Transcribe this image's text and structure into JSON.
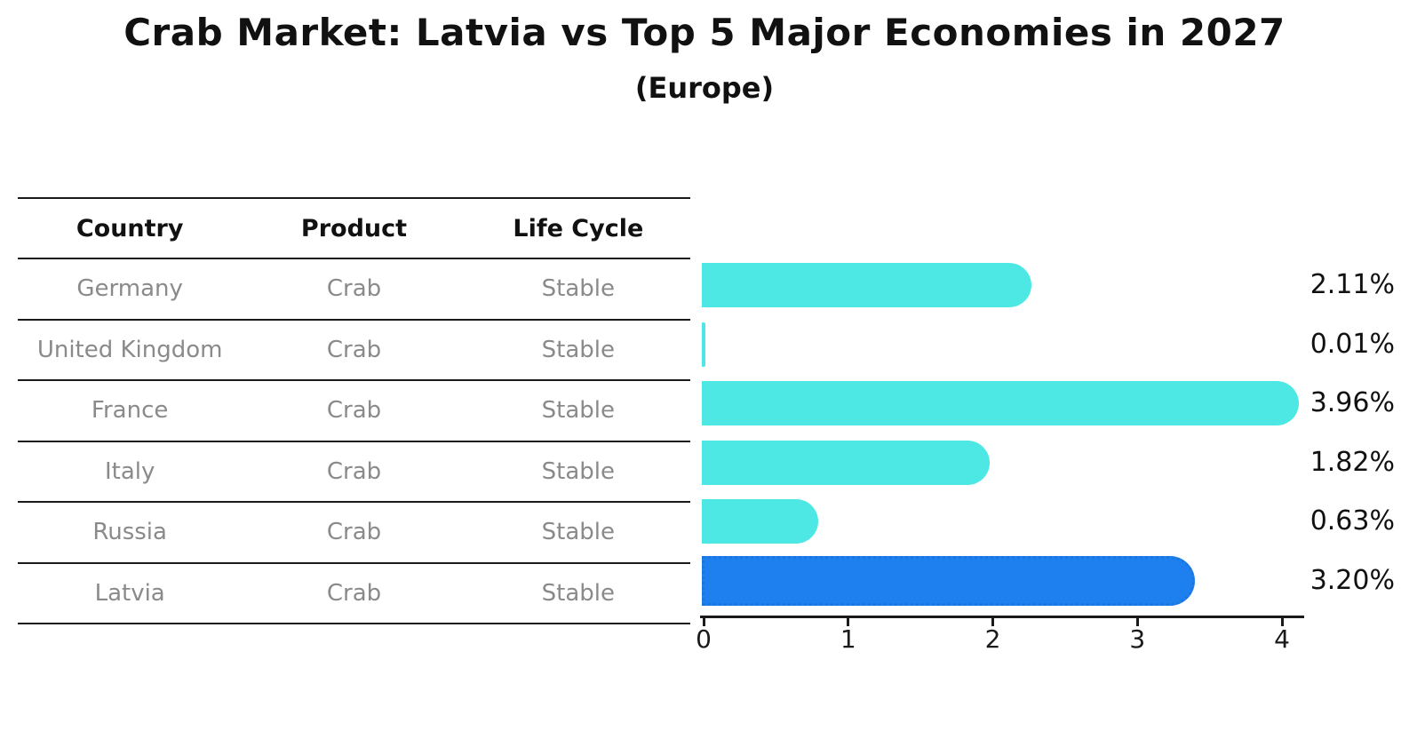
{
  "title": "Crab Market: Latvia vs Top 5 Major Economies in 2027",
  "subtitle": "(Europe)",
  "table": {
    "headers": [
      "Country",
      "Product",
      "Life Cycle"
    ],
    "rows": [
      {
        "country": "Germany",
        "product": "Crab",
        "life_cycle": "Stable",
        "highlight": false
      },
      {
        "country": "United Kingdom",
        "product": "Crab",
        "life_cycle": "Stable",
        "highlight": false
      },
      {
        "country": "France",
        "product": "Crab",
        "life_cycle": "Stable",
        "highlight": false
      },
      {
        "country": "Italy",
        "product": "Crab",
        "life_cycle": "Stable",
        "highlight": false
      },
      {
        "country": "Russia",
        "product": "Crab",
        "life_cycle": "Stable",
        "highlight": false
      },
      {
        "country": "Latvia",
        "product": "Crab",
        "life_cycle": "Stable",
        "highlight": true
      }
    ]
  },
  "chart_data": {
    "type": "bar",
    "orientation": "horizontal",
    "title": "Crab Market: Latvia vs Top 5 Major Economies in 2027 (Europe)",
    "categories": [
      "Germany",
      "United Kingdom",
      "France",
      "Italy",
      "Russia",
      "Latvia"
    ],
    "values": [
      2.11,
      0.01,
      3.96,
      1.82,
      0.63,
      3.2
    ],
    "value_labels": [
      "2.11%",
      "0.01%",
      "3.96%",
      "1.82%",
      "0.63%",
      "3.20%"
    ],
    "highlight_index": 5,
    "x_ticks": [
      "0",
      "1",
      "2",
      "3",
      "4"
    ],
    "x_tick_values": [
      0,
      1,
      2,
      3,
      4
    ],
    "xlim": [
      0,
      4.15
    ],
    "xlabel": "",
    "ylabel": "",
    "grid": false,
    "legend": "none",
    "unit": "percent"
  },
  "colors": {
    "bar": "#4de8e4",
    "highlight_bar": "#1e80ee",
    "highlight_border": "#1a76dd",
    "highlight_text": "#2878c8",
    "row_text": "#8a8a8a",
    "header_text": "#111111",
    "value_text": "#111111",
    "line": "#1a1a1a",
    "background": "#ffffff"
  }
}
